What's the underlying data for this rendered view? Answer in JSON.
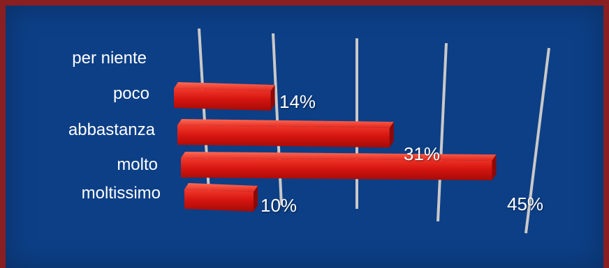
{
  "chart_data": {
    "type": "bar",
    "orientation": "horizontal",
    "categories": [
      "per niente",
      "poco",
      "abbastanza",
      "molto",
      "moltissimo"
    ],
    "values": [
      0,
      14,
      31,
      45,
      10
    ],
    "value_labels": [
      "",
      "14%",
      "31%",
      "45%",
      "10%"
    ],
    "title": "",
    "xlabel": "",
    "ylabel": "",
    "grid": true,
    "legend": "none"
  },
  "colors": {
    "background": "#0c3f86",
    "frame": "#8a1f22",
    "bar": "#d4140f",
    "gridline": "#c9c9c9",
    "text": "#ffffff"
  }
}
